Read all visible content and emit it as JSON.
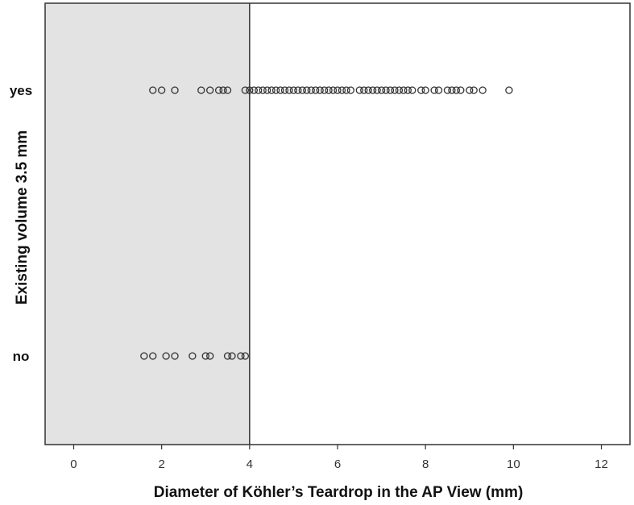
{
  "chart_data": {
    "type": "scatter",
    "title": "",
    "xlabel": "Diameter of Köhler’s Teardrop in the AP View  (mm)",
    "ylabel": "Existing volume 3.5 mm",
    "xlim": [
      -0.65,
      12.65
    ],
    "xticks": [
      "0",
      "2",
      "4",
      "6",
      "8",
      "10",
      "12"
    ],
    "categories": [
      "yes",
      "no"
    ],
    "threshold": 4,
    "shaded_region": [
      -0.65,
      4
    ],
    "shade_color": "#e3e3e3",
    "marker_color": "#333333",
    "grid": false,
    "series": [
      {
        "name": "yes",
        "x": [
          1.8,
          2.0,
          2.3,
          2.9,
          3.1,
          3.3,
          3.4,
          3.5,
          3.9,
          4.0,
          4.1,
          4.2,
          4.3,
          4.4,
          4.5,
          4.6,
          4.7,
          4.8,
          4.9,
          5.0,
          5.1,
          5.2,
          5.3,
          5.4,
          5.5,
          5.6,
          5.7,
          5.8,
          5.9,
          6.0,
          6.1,
          6.2,
          6.3,
          6.5,
          6.6,
          6.7,
          6.8,
          6.9,
          7.0,
          7.1,
          7.2,
          7.3,
          7.4,
          7.5,
          7.6,
          7.7,
          7.9,
          8.0,
          8.2,
          8.3,
          8.5,
          8.6,
          8.7,
          8.8,
          9.0,
          9.1,
          9.3,
          9.9
        ]
      },
      {
        "name": "no",
        "x": [
          1.6,
          1.8,
          2.1,
          2.3,
          2.7,
          3.0,
          3.1,
          3.5,
          3.6,
          3.8,
          3.9
        ]
      }
    ]
  }
}
